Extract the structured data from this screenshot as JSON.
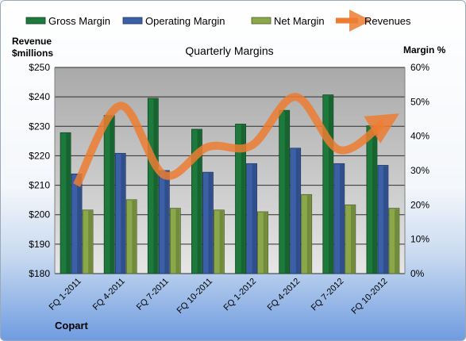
{
  "chart_data": {
    "type": "bar",
    "title": "Quarterly Margins",
    "ylabel_left_line1": "Revenue",
    "ylabel_left_line2": "$millions",
    "ylabel_right": "Margin %",
    "footer": "Copart",
    "categories": [
      "FQ 1-2011",
      "FQ 4-2011",
      "FQ 7-2011",
      "FQ 10-2011",
      "FQ 1-2012",
      "FQ 4-2012",
      "FQ 7-2012",
      "FQ 10-2012"
    ],
    "left_axis": {
      "min": 180,
      "max": 250,
      "step": 10,
      "prefix": "$"
    },
    "right_axis": {
      "min": 0,
      "max": 60,
      "step": 10,
      "suffix": "%"
    },
    "legend_position": "top",
    "series": [
      {
        "name": "Gross Margin",
        "kind": "bar",
        "axis": "right",
        "color": "#1d7a3c",
        "values": [
          41,
          46,
          51,
          42,
          43.5,
          47.5,
          52,
          43
        ]
      },
      {
        "name": "Operating Margin",
        "kind": "bar",
        "axis": "right",
        "color": "#3b60a8",
        "values": [
          29,
          35,
          30,
          29.5,
          32,
          36.5,
          32,
          31.5
        ]
      },
      {
        "name": "Net Margin",
        "kind": "bar",
        "axis": "right",
        "color": "#8aa84a",
        "values": [
          18.5,
          21.5,
          19,
          18.5,
          18,
          23,
          20,
          19
        ]
      },
      {
        "name": "Revenues",
        "kind": "line",
        "axis": "left",
        "color": "#ed7d31",
        "values": [
          210,
          237,
          213.5,
          223,
          223.5,
          240,
          222,
          231
        ]
      }
    ],
    "grid": true
  }
}
